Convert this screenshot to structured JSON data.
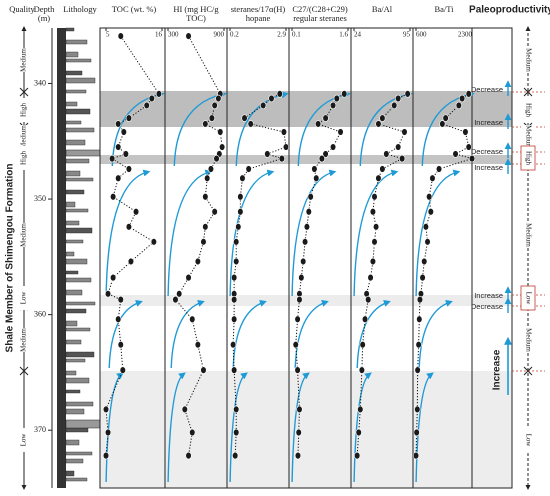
{
  "chart_data": {
    "type": "line",
    "ylabel": [
      "Depth",
      "(m)"
    ],
    "ylim": [
      335.2,
      375
    ],
    "yticks": [
      340,
      350,
      360,
      370
    ],
    "depths": [
      335.9,
      340.9,
      341.3,
      341.9,
      343.0,
      343.5,
      344.2,
      345.5,
      346.1,
      346.5,
      347.4,
      348.2,
      349.8,
      351.1,
      352.4,
      353.7,
      355.4,
      356.8,
      358.2,
      358.7,
      360.4,
      362.6,
      364.8,
      368.2,
      370.2,
      372.2
    ],
    "arrow_color": "#1e9ad6",
    "point_color": "#1a1a1a",
    "panels": [
      {
        "title": [
          "TOC (wt. %)"
        ],
        "xlim": [
          5,
          16
        ],
        "xticks": [
          5,
          16
        ],
        "values": [
          7.9,
          15.4,
          14.0,
          13.0,
          9.5,
          7.4,
          8.5,
          7.4,
          8.9,
          6.2,
          9.5,
          7.4,
          6.4,
          10.9,
          9.5,
          14.4,
          9.9,
          6.4,
          5.4,
          7.9,
          7.4,
          7.9,
          8.3,
          5.0,
          5.4,
          5.0
        ]
      },
      {
        "title": [
          "HI (mg HC/g",
          "TOC)"
        ],
        "xlim": [
          300,
          900
        ],
        "xticks": [
          300,
          900
        ],
        "values": [
          520,
          860,
          840,
          800,
          770,
          700,
          860,
          880,
          850,
          820,
          760,
          720,
          700,
          800,
          700,
          680,
          620,
          520,
          420,
          380,
          560,
          620,
          680,
          480,
          560,
          520
        ]
      },
      {
        "title": [
          "steranes/17α(H)",
          "hopane"
        ],
        "xlim": [
          0.2,
          2.9
        ],
        "xticks": [
          0.2,
          2.9
        ],
        "values": [
          null,
          2.6,
          2.2,
          1.8,
          0.9,
          1.2,
          2.8,
          2.9,
          2.0,
          2.7,
          1.1,
          0.8,
          0.7,
          0.7,
          0.6,
          0.5,
          0.5,
          0.4,
          0.4,
          0.4,
          0.4,
          0.35,
          0.4,
          0.5,
          0.5,
          0.45
        ]
      },
      {
        "title": [
          "C27/(C28+C29)",
          "regular steranes"
        ],
        "xlim": [
          0.1,
          1.6
        ],
        "xticks": [
          0.1,
          1.6
        ],
        "values": [
          null,
          1.5,
          1.3,
          1.2,
          1.0,
          0.8,
          1.4,
          1.2,
          1.0,
          0.9,
          0.7,
          0.75,
          0.6,
          0.55,
          0.5,
          0.45,
          0.4,
          0.35,
          0.3,
          0.3,
          0.25,
          0.2,
          0.25,
          0.3,
          0.28,
          0.26
        ]
      },
      {
        "title": [
          "Ba/Al"
        ],
        "xlim": [
          24,
          95
        ],
        "xticks": [
          24,
          95
        ],
        "values": [
          null,
          92,
          80,
          75,
          60,
          55,
          88,
          80,
          65,
          85,
          60,
          55,
          50,
          48,
          52,
          50,
          48,
          45,
          40,
          42,
          38,
          35,
          34,
          32,
          30,
          28
        ]
      },
      {
        "title": [
          "Ba/Ti"
        ],
        "xlim": [
          600,
          2300
        ],
        "xticks": [
          600,
          2300
        ],
        "values": [
          null,
          2200,
          2000,
          1900,
          1500,
          1400,
          2100,
          2200,
          1800,
          2300,
          1300,
          1100,
          1000,
          1050,
          900,
          950,
          850,
          800,
          750,
          720,
          700,
          680,
          650,
          640,
          620,
          600
        ]
      }
    ]
  },
  "side_title": "Shale Member of Shimengou Formation",
  "column_headers": {
    "quality": "Quality",
    "lithology": "Lithology",
    "productivity": "Paleoproductivity"
  },
  "quality_levels": [
    "Medium",
    "High",
    "Medium",
    "High",
    "Medium",
    "Low",
    "Medium",
    "Low"
  ],
  "productivity_trends": [
    "Decrease",
    "Increase",
    "Decrease",
    "Increase",
    "Increase",
    "Decrease",
    "Increase"
  ]
}
